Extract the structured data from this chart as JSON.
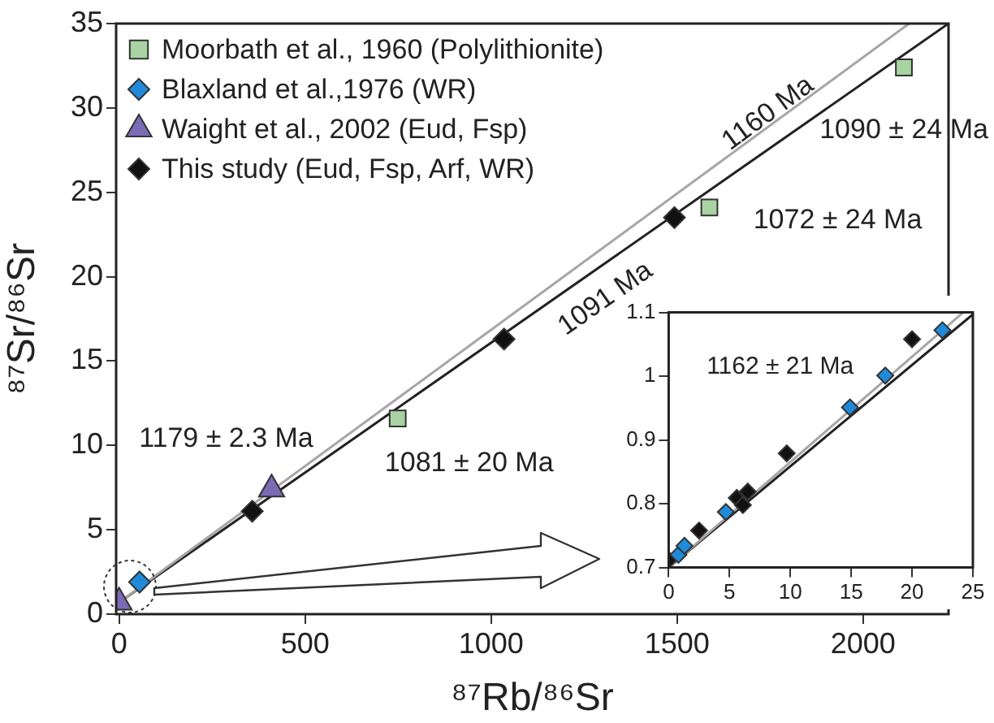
{
  "chart_data": [
    {
      "type": "scatter",
      "xlabel": "⁸⁷Rb/⁸⁶Sr",
      "ylabel": "⁸⁷Sr/⁸⁶Sr",
      "xlim": [
        -8,
        2230
      ],
      "ylim": [
        0,
        35
      ],
      "xticks": [
        0,
        500,
        1000,
        1500,
        2000
      ],
      "yticks": [
        0,
        5,
        10,
        15,
        20,
        25,
        30,
        35
      ],
      "grid": false,
      "legend": "top left",
      "series": [
        {
          "name": "Moorbath et al., 1960 (Polylithionite)",
          "color": "#a9d3a3",
          "marker": "square",
          "x": [
            749,
            1587,
            2110
          ],
          "values": [
            11.6,
            24.1,
            32.4
          ]
        },
        {
          "name": "Blaxland et al.,1976 (WR)",
          "color": "#1f8ad9",
          "marker": "diamond",
          "x": [
            55
          ],
          "values": [
            1.9
          ]
        },
        {
          "name": "Waight et al., 2002 (Eud, Fsp)",
          "color": "#7a6bb5",
          "marker": "triangle",
          "x": [
            410,
            0
          ],
          "values": [
            7.4,
            0.7
          ]
        },
        {
          "name": "This study (Eud, Fsp, Arf, WR)",
          "color": "#111111",
          "marker": "diamond",
          "x": [
            358,
            1035,
            1493
          ],
          "values": [
            6.1,
            16.3,
            23.5
          ]
        },
        {
          "type": "line",
          "color": "#a6a6a6",
          "x": [
            0,
            2124
          ],
          "values": [
            0.7,
            35
          ]
        },
        {
          "type": "line",
          "color": "#222222",
          "x": [
            0,
            2230
          ],
          "values": [
            0.7,
            35
          ]
        }
      ],
      "annotations": [
        {
          "text": "1160 Ma",
          "x": 1745,
          "y": 28.8
        },
        {
          "text": "1091 Ma",
          "x": 1308,
          "y": 20.8
        },
        {
          "text": "1090 ± 24 Ma",
          "x": 2110,
          "y": 32.4
        },
        {
          "text": "1072 ± 24 Ma",
          "x": 1587,
          "y": 24.1
        },
        {
          "text": "1081 ± 20 Ma",
          "x": 749,
          "y": 11.6
        },
        {
          "text": "1179 ± 2.3 Ma",
          "x": 410,
          "y": 7.4
        }
      ]
    },
    {
      "type": "scatter",
      "xlim": [
        0,
        25
      ],
      "ylim": [
        0.7,
        1.1
      ],
      "xticks": [
        0,
        5,
        10,
        15,
        20,
        25
      ],
      "yticks": [
        0.7,
        0.8,
        0.9,
        1,
        1.1
      ],
      "grid": false,
      "series": [
        {
          "color": "#1f8ad9",
          "marker": "diamond",
          "x": [
            0.8,
            1.3,
            4.7,
            14.9,
            17.8,
            22.5
          ],
          "values": [
            0.72,
            0.734,
            0.787,
            0.951,
            1.001,
            1.072
          ]
        },
        {
          "color": "#111111",
          "marker": "diamond",
          "x": [
            0,
            2.5,
            5.6,
            6.1,
            6.5,
            9.7,
            20
          ],
          "values": [
            0.712,
            0.758,
            0.809,
            0.798,
            0.819,
            0.879,
            1.058
          ]
        },
        {
          "type": "line",
          "color": "#a6a6a6",
          "x": [
            0,
            24.2
          ],
          "values": [
            0.7,
            1.1
          ]
        },
        {
          "type": "line",
          "color": "#222222",
          "x": [
            0,
            25
          ],
          "values": [
            0.7,
            1.097
          ]
        }
      ],
      "annotations": [
        {
          "text": "1162 ± 21 Ma",
          "x": 14.9,
          "y": 0.951
        }
      ]
    }
  ]
}
